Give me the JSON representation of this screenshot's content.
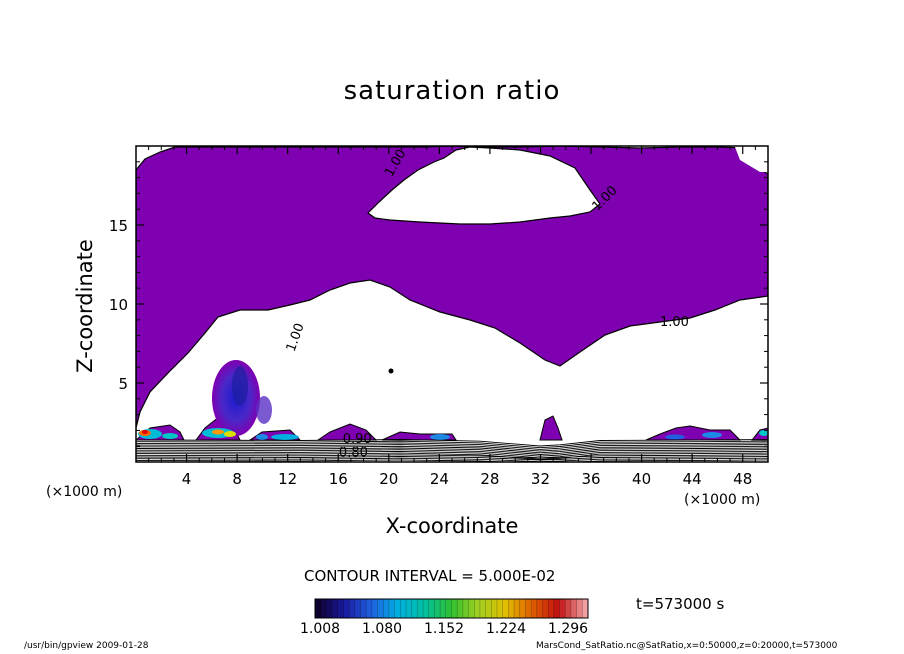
{
  "chart_data": {
    "type": "contour",
    "title": "saturation ratio",
    "xlabel": "X-coordinate",
    "ylabel": "Z-coordinate",
    "x_unit_left": "(×1000 m)",
    "x_unit_right": "(×1000 m)",
    "xlim": [
      0,
      50
    ],
    "ylim": [
      0,
      20
    ],
    "x_ticks": [
      4,
      8,
      12,
      16,
      20,
      24,
      28,
      32,
      36,
      40,
      44,
      48
    ],
    "y_ticks": [
      5,
      10,
      15
    ],
    "contour_interval": "CONTOUR INTERVAL = 5.000E-02",
    "contour_labels": [
      {
        "text": "1.00",
        "x": 20.8,
        "z": 18.8
      },
      {
        "text": "1.00",
        "x": 37.3,
        "z": 16.5
      },
      {
        "text": "1.00",
        "x": 42.6,
        "z": 8.6
      },
      {
        "text": "1.00",
        "x": 12.9,
        "z": 7.8
      },
      {
        "text": "0.90",
        "x": 17.5,
        "z": 1.2
      },
      {
        "text": "0.80",
        "x": 17.2,
        "z": 0.35
      }
    ],
    "supersaturated_region": {
      "color": "#7f00b0",
      "threshold": 1.0
    },
    "colorbar": {
      "ticks": [
        "1.008",
        "1.080",
        "1.152",
        "1.224",
        "1.296"
      ],
      "min": 1.008,
      "max": 1.296
    },
    "time": "t=573000 s"
  },
  "footer": {
    "left": "/usr/bin/gpview   2009-01-28",
    "right": "MarsCond_SatRatio.nc@SatRatio,x=0:50000,z=0:20000,t=573000"
  }
}
